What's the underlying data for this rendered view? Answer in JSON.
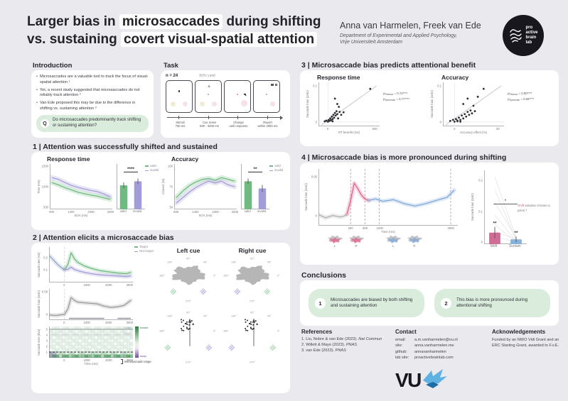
{
  "poster": {
    "title": {
      "pre1": "Larger bias in ",
      "hl1": "microsaccades",
      "post1": " during shifting",
      "pre2": "vs. sustaining ",
      "hl2": "covert visual-spatial attention"
    },
    "authors": "Anna van Harmelen, Freek van Ede",
    "affil1": "Department of Experimental and Applied Psychology,",
    "affil2": "Vrije Universiteit Amsterdam",
    "logo": [
      "pro",
      "active",
      "brain",
      "lab"
    ]
  },
  "intro": {
    "heading": "Introduction",
    "bullet": "•",
    "bullets": [
      "Microsaccades are a valuable tool to track the focus of visual-spatial attention ¹",
      "Yet, a recent study suggested that microsaccades do not reliably track attention ²",
      "Van Ede proposed this may be due to the difference in shifting vs. sustaining attention ³"
    ],
    "q": "Q",
    "question": "Do microsaccades predominantly track shifting or sustaining attention?"
  },
  "task": {
    "heading": "Task",
    "n": "n = 24",
    "valid": "80% valid",
    "stages": [
      {
        "t": "Stimuli",
        "s": "750 ms"
      },
      {
        "t": "Cue onset",
        "s": "500 - 3200 ms"
      },
      {
        "t": "Change",
        "s": "until response"
      },
      {
        "t": "Report",
        "s": "within 2000 ms"
      }
    ]
  },
  "s1": {
    "heading": "1 | Attention was successfully shifted and sustained",
    "rt_title": "Response time",
    "acc_title": "Accuracy"
  },
  "s2": {
    "heading": "2 | Attention elicits a microsaccade bias",
    "left_cue": "Left cue",
    "right_cue": "Right cue",
    "angles": {
      "a90": "90°",
      "a45": "45°",
      "a135": "135°",
      "a180": "180°",
      "a0": "0°",
      "a270": "270°"
    },
    "heat": {
      "center": "Center",
      "stimuli": "Stimuli",
      "range": "microsaccade range",
      "toward": "toward",
      "away": "away"
    }
  },
  "s3": {
    "heading": "3 | Microsaccade bias predicts attentional benefit",
    "rt_title": "Response time",
    "acc_title": "Accuracy",
    "rt_stats": [
      {
        "sym": "ρ",
        "sub": "Pearson",
        "val": "= 0.72****"
      },
      {
        "sym": "ρ",
        "sub": "Spearman",
        "val": "= 0.77****"
      }
    ],
    "acc_stats": [
      {
        "sym": "ρ",
        "sub": "Pearson",
        "val": "= 0.80****"
      },
      {
        "sym": "ρ",
        "sub": "Spearman",
        "val": "= 0.69****"
      }
    ]
  },
  "s4": {
    "heading": "4 | Microsaccade bias is more pronounced during shifting",
    "note_hl": "Shift",
    "note_rest": " window chosen a priori ³",
    "mini": [
      "L",
      "R",
      "L",
      "R"
    ]
  },
  "conclusions": {
    "heading": "Conclusions",
    "items": [
      {
        "n": "1",
        "text": "Microsaccades are biased by both shifting and sustaining attention"
      },
      {
        "n": "2",
        "text": "This bias is more pronounced during attentional shifting"
      }
    ]
  },
  "references": {
    "heading": "References",
    "items": [
      {
        "n": "1.",
        "t": "Liu, Nobre & van Ede (2023).",
        "j": "Nat Commun"
      },
      {
        "n": "2.",
        "t": "Willett & Mayo (2023).",
        "j": "PNAS"
      },
      {
        "n": "3.",
        "t": "van Ede (2023).",
        "j": "PNAS"
      }
    ]
  },
  "contact": {
    "heading": "Contact",
    "rows": [
      {
        "l": "email:",
        "v": "a.m.vanharmelen@vu.nl"
      },
      {
        "l": "site:",
        "v": "anna.vanharmelen.me"
      },
      {
        "l": "github:",
        "v": "annavanharmelen"
      },
      {
        "l": "lab site:",
        "v": "proactivebrainlab.com"
      }
    ]
  },
  "ack": {
    "heading": "Acknowledgements",
    "text": "Funded by an NWO Vidi Grant and an ERC Starting Grant, awarded to F.v.E."
  },
  "vu": {
    "mark": "VU"
  },
  "chart_data": {
    "s1_rt_line": {
      "type": "line",
      "xlim": [
        400,
        3300
      ],
      "ylim": [
        500,
        1500
      ],
      "xticks": [
        "500",
        "1400",
        "2300",
        "3200"
      ],
      "yticks": [
        "1500",
        "1000",
        "500"
      ],
      "xlabel": "SOA (ms)",
      "ylabel": "Time (ms)",
      "legend": [
        {
          "label": "valid",
          "color": "#6fba81"
        },
        {
          "label": "invalid",
          "color": "#a29dd8"
        }
      ],
      "series": [
        {
          "name": "valid",
          "color": "#6fba81",
          "band": 7,
          "x": [
            500,
            800,
            1100,
            1400,
            1700,
            2000,
            2300,
            2600,
            2900,
            3200
          ],
          "y": [
            1090,
            1040,
            980,
            930,
            880,
            845,
            815,
            790,
            755,
            720
          ]
        },
        {
          "name": "invalid",
          "color": "#a29dd8",
          "band": 7,
          "x": [
            500,
            800,
            1100,
            1400,
            1700,
            2000,
            2300,
            2600,
            2900,
            3200
          ],
          "y": [
            1200,
            1160,
            1090,
            1030,
            985,
            950,
            915,
            890,
            840,
            780
          ]
        }
      ]
    },
    "s1_rt_bars": {
      "type": "bar",
      "ylim": [
        500,
        1500
      ],
      "values": [
        1030,
        1120
      ],
      "errors": [
        4,
        4
      ],
      "colors": [
        "#6fba81",
        "#a29dd8"
      ],
      "labels": [
        "valid",
        "invalid"
      ],
      "sig": "****"
    },
    "s1_acc_line": {
      "type": "line",
      "xlim": [
        400,
        3300
      ],
      "ylim": [
        50,
        100
      ],
      "xticks": [
        "500",
        "1400",
        "2300",
        "3200"
      ],
      "yticks": [
        "100",
        "75",
        "50"
      ],
      "xlabel": "SOA (ms)",
      "ylabel": "Correct (%)",
      "legend": [
        {
          "label": "valid",
          "color": "#6fba81"
        },
        {
          "label": "invalid",
          "color": "#a29dd8"
        }
      ],
      "series": [
        {
          "name": "valid",
          "color": "#6fba81",
          "band": 7,
          "x": [
            500,
            800,
            1100,
            1400,
            1700,
            2000,
            2300,
            2600,
            2900,
            3200
          ],
          "y": [
            63,
            70,
            76,
            80,
            83,
            84,
            82,
            85,
            83,
            81
          ]
        },
        {
          "name": "invalid",
          "color": "#a29dd8",
          "band": 7,
          "x": [
            500,
            800,
            1100,
            1400,
            1700,
            2000,
            2300,
            2600,
            2900,
            3200
          ],
          "y": [
            57,
            63,
            69,
            74,
            78,
            81,
            79,
            81,
            77,
            75
          ]
        }
      ]
    },
    "s1_acc_bars": {
      "type": "bar",
      "ylim": [
        50,
        100
      ],
      "values": [
        81,
        73
      ],
      "errors": [
        4,
        5
      ],
      "colors": [
        "#6fba81",
        "#a29dd8"
      ],
      "labels": [
        "valid",
        "invalid"
      ],
      "sig": "**"
    },
    "s2_rate": {
      "type": "line",
      "xlim": [
        -700,
        3100
      ],
      "ylim": [
        0,
        0.3
      ],
      "xticks": [
        "0",
        "1000",
        "2000",
        "3000"
      ],
      "yticks": [
        "0.2",
        "0.1"
      ],
      "ylabel": "Saccade rate (Hz)",
      "legend": [
        {
          "label": "Target",
          "color": "#6fba81"
        },
        {
          "label": "Non-target",
          "color": "#a29dd8"
        }
      ],
      "vlines": [
        {
          "x": 0,
          "color": "#d8d8de"
        }
      ],
      "series": [
        {
          "name": "baseline",
          "color": "#8fa8c8",
          "band": 6,
          "x": [
            -700,
            -500,
            -300,
            -100,
            0
          ],
          "y": [
            0.23,
            0.19,
            0.15,
            0.12,
            0.11
          ]
        },
        {
          "name": "Target",
          "color": "#6fba81",
          "band": 6,
          "x": [
            0,
            150,
            300,
            450,
            600,
            900,
            1200,
            1600,
            2000,
            2400,
            2800,
            3000
          ],
          "y": [
            0.11,
            0.15,
            0.25,
            0.2,
            0.17,
            0.14,
            0.12,
            0.1,
            0.09,
            0.08,
            0.075,
            0.085
          ]
        },
        {
          "name": "Non-target",
          "color": "#a29dd8",
          "band": 6,
          "x": [
            0,
            150,
            300,
            450,
            600,
            900,
            1200,
            1600,
            2000,
            2400,
            2800,
            3000
          ],
          "y": [
            0.11,
            0.11,
            0.13,
            0.11,
            0.1,
            0.085,
            0.075,
            0.065,
            0.06,
            0.055,
            0.05,
            0.055
          ]
        }
      ]
    },
    "s2_bias": {
      "type": "line",
      "xlim": [
        -700,
        3100
      ],
      "ylim": [
        -0.018,
        0.09
      ],
      "xticks": [
        "0",
        "1000",
        "2000",
        "3000"
      ],
      "yticks": [
        "0.08",
        "0"
      ],
      "ylabel": "Saccade bias (ΔHz)",
      "vlines": [
        {
          "x": 0,
          "color": "#d8d8de"
        }
      ],
      "hspans": [
        {
          "x1": 200,
          "x2": 1800,
          "y": -0.012,
          "color": "#9a9aa2"
        },
        {
          "x1": 2400,
          "x2": 3000,
          "y": -0.012,
          "color": "#9a9aa2"
        }
      ],
      "series": [
        {
          "name": "bias",
          "color": "#9a9a9a",
          "band": 6,
          "x": [
            -700,
            -400,
            -100,
            0,
            150,
            300,
            450,
            600,
            900,
            1200,
            1500,
            1800,
            2100,
            2400,
            2700,
            3000
          ],
          "y": [
            0,
            -0.002,
            0.001,
            0.002,
            0.02,
            0.06,
            0.05,
            0.044,
            0.042,
            0.04,
            0.038,
            0.03,
            0.026,
            0.028,
            0.033,
            0.05
          ]
        }
      ]
    },
    "s2_heat": {
      "type": "heatmap",
      "xticks": [
        "0",
        "1000",
        "2000",
        "3000"
      ],
      "yticks": [
        "5",
        "4",
        "3",
        "2",
        "1"
      ],
      "xlabel": "Time (ms)",
      "ylabel": "Saccade size (dva)"
    },
    "s3_rt": {
      "type": "scatter",
      "xlim": [
        -120,
        660
      ],
      "ylim": [
        -0.012,
        0.11
      ],
      "xticks": [
        "0",
        "600"
      ],
      "yticks": [
        "0.1",
        "0"
      ],
      "xlabel": "RT benefit (ms)",
      "ylabel": "Saccade bias (ΔHz)",
      "trend": [
        [
          -80,
          -0.008
        ],
        [
          620,
          0.1
        ]
      ],
      "points": [
        [
          -40,
          0.002
        ],
        [
          -20,
          0.004
        ],
        [
          0,
          0.001
        ],
        [
          10,
          0.006
        ],
        [
          20,
          0.003
        ],
        [
          30,
          0.01
        ],
        [
          40,
          0.005
        ],
        [
          50,
          0.015
        ],
        [
          60,
          0.008
        ],
        [
          70,
          0.02
        ],
        [
          80,
          0.012
        ],
        [
          90,
          0.025
        ],
        [
          100,
          0.018
        ],
        [
          110,
          0.03
        ],
        [
          120,
          0.022
        ],
        [
          130,
          0.01
        ],
        [
          150,
          0.028
        ],
        [
          170,
          0.02
        ],
        [
          200,
          0.027
        ],
        [
          90,
          0.065
        ],
        [
          120,
          0.05
        ],
        [
          140,
          0.042
        ],
        [
          540,
          0.092
        ],
        [
          60,
          0.002
        ]
      ]
    },
    "s3_acc": {
      "type": "scatter",
      "xlim": [
        -8,
        34
      ],
      "ylim": [
        -0.012,
        0.11
      ],
      "xticks": [
        "0",
        "30"
      ],
      "yticks": [
        "0.1",
        "0"
      ],
      "xlabel": "Accuracy effect (%)",
      "ylabel": "Saccade bias (ΔHz)",
      "trend": [
        [
          -6,
          -0.008
        ],
        [
          32,
          0.1
        ]
      ],
      "points": [
        [
          -3,
          0.003
        ],
        [
          -1,
          0.006
        ],
        [
          0,
          0.001
        ],
        [
          1,
          0.008
        ],
        [
          2,
          0.004
        ],
        [
          3,
          0.012
        ],
        [
          4,
          0.006
        ],
        [
          5,
          0.018
        ],
        [
          6,
          0.01
        ],
        [
          7,
          0.022
        ],
        [
          8,
          0.015
        ],
        [
          9,
          0.028
        ],
        [
          10,
          0.02
        ],
        [
          11,
          0.032
        ],
        [
          12,
          0.024
        ],
        [
          6,
          0.05
        ],
        [
          9,
          0.065
        ],
        [
          13,
          0.045
        ],
        [
          20,
          0.092
        ],
        [
          16,
          0.07
        ],
        [
          2,
          0.002
        ],
        [
          4,
          0.001
        ],
        [
          14,
          0.03
        ]
      ]
    },
    "s4_time": {
      "type": "line",
      "xlim": [
        -700,
        3200
      ],
      "ylim": [
        -0.012,
        0.06
      ],
      "yticks": [
        "0.05",
        "0"
      ],
      "xlabel": "Time (ms)",
      "xticks": [
        "200",
        "600",
        "1000",
        "3000"
      ],
      "ylabel": "Saccade bias (ΔHz)",
      "vlines": [
        {
          "x": 200,
          "color": "#e79ab5"
        },
        {
          "x": 600,
          "color": "#e79ab5"
        },
        {
          "x": 1000,
          "color": "#b5b5bc"
        },
        {
          "x": 3000,
          "color": "#b5b5bc"
        }
      ],
      "series": [
        {
          "name": "pre",
          "color": "#b0b0b0",
          "band": 6,
          "x": [
            -700,
            -500,
            -300,
            -100,
            0,
            100
          ],
          "y": [
            0.002,
            -0.002,
            0.001,
            -0.001,
            0,
            0.002
          ]
        },
        {
          "name": "shift",
          "color": "#e0608c",
          "band": 6,
          "x": [
            100,
            200,
            300,
            400,
            500,
            600,
            700
          ],
          "y": [
            0.003,
            0.02,
            0.042,
            0.035,
            0.027,
            0.022,
            0.02
          ]
        },
        {
          "name": "sustain",
          "color": "#7fa9d8",
          "band": 6,
          "x": [
            700,
            900,
            1100,
            1400,
            1700,
            2000,
            2300,
            2600,
            2900,
            3100
          ],
          "y": [
            0.02,
            0.022,
            0.019,
            0.021,
            0.016,
            0.013,
            0.016,
            0.02,
            0.024,
            0.033
          ]
        }
      ]
    },
    "s4_bars": {
      "type": "bar",
      "ylim": [
        0,
        0.23
      ],
      "values": [
        0.036,
        0.015
      ],
      "errors": [
        8,
        4
      ],
      "colors": [
        "#cf6d96",
        "#85b3dc"
      ],
      "labels": [
        "Shift",
        "Sustain"
      ],
      "yticks": [
        "0.2",
        "0.1",
        "0"
      ],
      "ylabel": "Saccade bias (ΔHz)",
      "sig_each": [
        "**",
        "**"
      ],
      "sig_between": "*",
      "sig_between_y": 0.125,
      "subject_pairs": [
        [
          0.21,
          0.02
        ],
        [
          0.17,
          0.012
        ],
        [
          0.13,
          0.02
        ],
        [
          0.09,
          0.01
        ],
        [
          0.06,
          0.008
        ],
        [
          0.04,
          0.015
        ],
        [
          0.025,
          0.005
        ]
      ]
    }
  }
}
